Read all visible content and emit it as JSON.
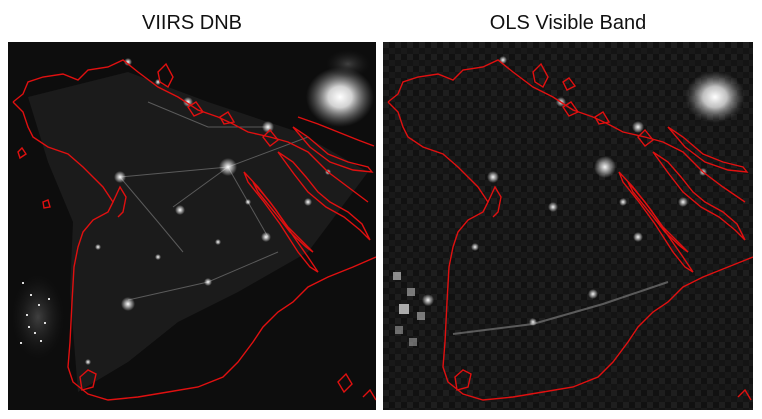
{
  "panels": [
    {
      "title": "VIIRS DNB",
      "content": "nighttime lights satellite image with red coastline outline"
    },
    {
      "title": "OLS Visible Band",
      "content": "nighttime lights satellite image with red coastline outline"
    }
  ],
  "colors": {
    "background": "#ffffff",
    "image_dark": "#0b0b0b",
    "coastline": "#e01010",
    "light": "#ffffff"
  }
}
